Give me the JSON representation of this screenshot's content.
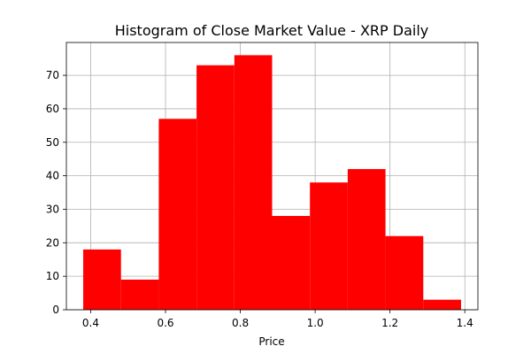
{
  "chart_data": {
    "type": "bar",
    "title": "Histogram of Close Market Value - XRP Daily",
    "xlabel": "Price",
    "ylabel": "",
    "bin_edges": [
      0.38,
      0.481,
      0.582,
      0.683,
      0.784,
      0.885,
      0.986,
      1.087,
      1.188,
      1.289,
      1.39
    ],
    "values": [
      18,
      9,
      57,
      73,
      76,
      28,
      38,
      42,
      22,
      3
    ],
    "xlim": [
      0.335,
      1.435
    ],
    "ylim": [
      0,
      79.8
    ],
    "x_ticks": [
      0.4,
      0.6,
      0.8,
      1.0,
      1.2,
      1.4
    ],
    "x_tick_labels": [
      "0.4",
      "0.6",
      "0.8",
      "1.0",
      "1.2",
      "1.4"
    ],
    "y_ticks": [
      0,
      10,
      20,
      30,
      40,
      50,
      60,
      70
    ],
    "y_tick_labels": [
      "0",
      "10",
      "20",
      "30",
      "40",
      "50",
      "60",
      "70"
    ],
    "grid": true,
    "bar_color": "#ff0000"
  }
}
